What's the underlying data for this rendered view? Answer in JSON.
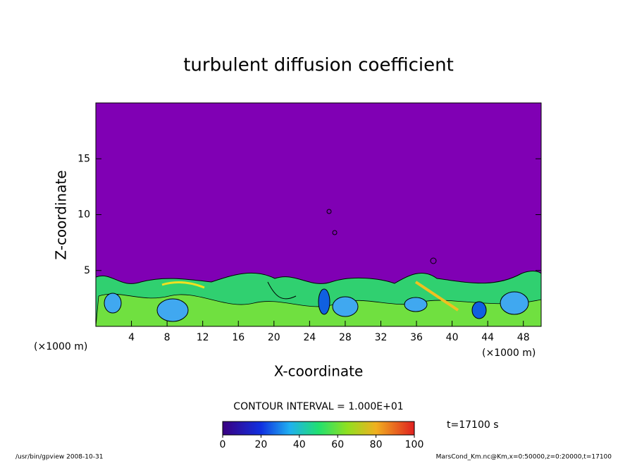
{
  "chart_data": {
    "type": "contour",
    "title": "turbulent diffusion coefficient",
    "x_label": "X-coordinate",
    "y_label": "Z-coordinate",
    "x_unit": "(×1000 m)",
    "xlim": [
      0,
      50
    ],
    "xticks": [
      4,
      8,
      12,
      16,
      20,
      24,
      28,
      32,
      36,
      40,
      44,
      48
    ],
    "ylim": [
      0,
      20
    ],
    "yticks": [
      5,
      10,
      15
    ],
    "background_color": "#8000b4",
    "contour_interval": "CONTOUR INTERVAL = 1.000E+01",
    "time_label": "t=17100 s",
    "colorbar": {
      "lim": [
        0,
        100
      ],
      "ticks": [
        0,
        20,
        40,
        60,
        80,
        100
      ]
    },
    "footer_left": "/usr/bin/gpview  2008-10-31",
    "footer_right": "MarsCond_Km.nc@Km,x=0:50000,z=0:20000,t=17100"
  }
}
